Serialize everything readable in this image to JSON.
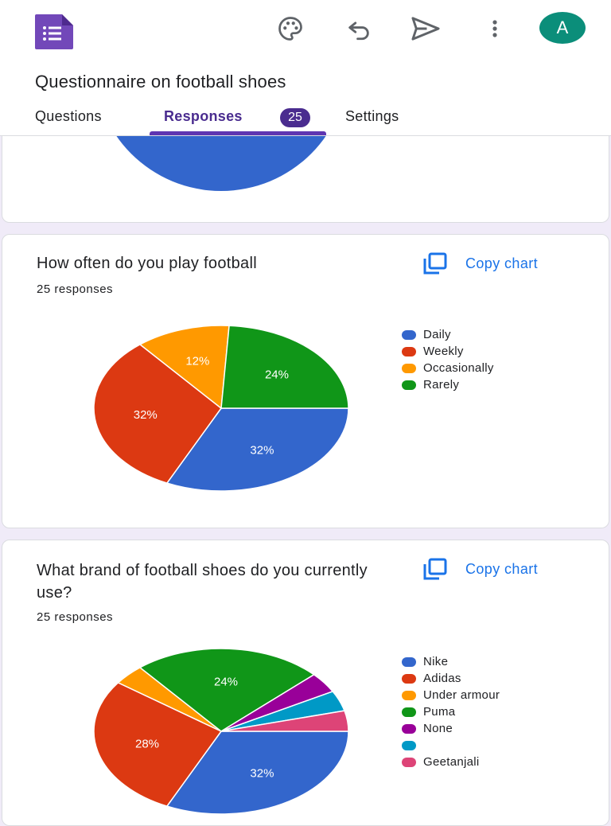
{
  "header": {
    "form_title": "Questionnaire on football shoes",
    "avatar_initial": "A",
    "icons": [
      "forms-logo-icon",
      "palette-icon",
      "undo-icon",
      "send-icon",
      "more-vert-icon"
    ]
  },
  "tabs": [
    {
      "label": "Questions"
    },
    {
      "label": "Responses",
      "badge": "25",
      "active": true
    },
    {
      "label": "Settings"
    }
  ],
  "top_card": {
    "chart_color": "#3366cc"
  },
  "questions": [
    {
      "title": "How often do you play football",
      "responses": "25 responses",
      "copy_label": "Copy chart",
      "chart_data": {
        "type": "pie",
        "categories": [
          "Daily",
          "Weekly",
          "Occasionally",
          "Rarely"
        ],
        "values": [
          32,
          32,
          12,
          24
        ],
        "value_labels": [
          "32%",
          "32%",
          "12%",
          "24%"
        ],
        "colors": [
          "#3366cc",
          "#dc3912",
          "#ff9900",
          "#109618"
        ]
      }
    },
    {
      "title": "What brand of football shoes do you currently use?",
      "responses": "25 responses",
      "copy_label": "Copy chart",
      "chart_data": {
        "type": "pie",
        "categories": [
          "Nike",
          "Adidas",
          "Under armour",
          "Puma",
          "None",
          "",
          "Geetanjali"
        ],
        "values": [
          32,
          28,
          4,
          24,
          4,
          4,
          4
        ],
        "value_labels": [
          "32%",
          "28%",
          "",
          "24%",
          "",
          "",
          ""
        ],
        "colors": [
          "#3366cc",
          "#dc3912",
          "#ff9900",
          "#109618",
          "#990099",
          "#0099c6",
          "#dd4477"
        ]
      }
    }
  ]
}
